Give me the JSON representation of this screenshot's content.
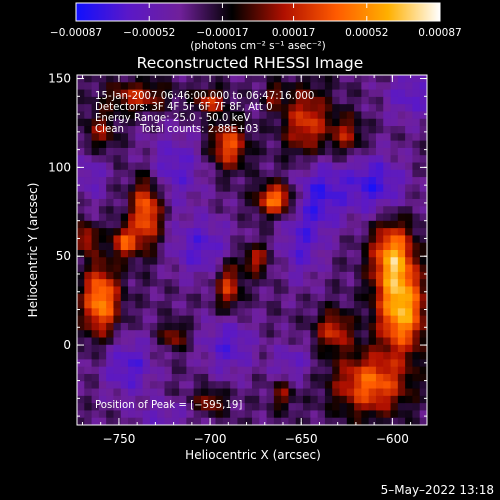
{
  "chart_data": {
    "type": "heatmap",
    "title": "Reconstructed RHESSI Image",
    "xlabel": "Heliocentric X (arcsec)",
    "ylabel": "Heliocentric Y (arcsec)",
    "xlim": [
      -773,
      -581
    ],
    "ylim": [
      -45,
      152
    ],
    "x_ticks": [
      -750,
      -700,
      -650,
      -600
    ],
    "x_tick_labels": [
      "−750",
      "−700",
      "−650",
      "−600"
    ],
    "y_ticks": [
      0,
      50,
      100,
      150
    ],
    "y_tick_labels": [
      "0",
      "50",
      "100",
      "150"
    ],
    "colorbar": {
      "min": -0.00087,
      "max": 0.00087,
      "ticks": [
        -0.00087,
        -0.00052,
        -0.00017,
        0.00017,
        0.00052,
        0.00087
      ],
      "tick_labels": [
        "−0.00087",
        "−0.00052",
        "−0.00017",
        "0.00017",
        "0.00052",
        "0.00087"
      ],
      "stops": [
        "#1010ff",
        "#5a18c8",
        "#70209a",
        "#000000",
        "#b01000",
        "#ff5a00",
        "#ffb000",
        "#ffffff"
      ],
      "unit_label": "(photons cm⁻² s⁻¹ asec⁻²)"
    },
    "info_lines": [
      "15-Jan-2007 06:46:00.000 to 06:47:16.000",
      "Detectors: 3F 4F 5F 6F 7F 8F, Att 0",
      "Energy Range: 25.0 - 50.0 keV",
      "Clean     Total counts: 2.88E+03"
    ],
    "peak_label": "Position of Peak = [−595,19]",
    "peak": [
      -595,
      19
    ],
    "sources": [
      {
        "x": -595,
        "y": 19,
        "sx": 9,
        "sy": 16,
        "a": 1.0
      },
      {
        "x": -600,
        "y": 50,
        "sx": 8,
        "sy": 14,
        "a": 0.9
      },
      {
        "x": -612,
        "y": -22,
        "sx": 14,
        "sy": 12,
        "a": 0.75
      },
      {
        "x": -632,
        "y": 8,
        "sx": 7,
        "sy": 8,
        "a": 0.55
      },
      {
        "x": -664,
        "y": 82,
        "sx": 7,
        "sy": 6,
        "a": 0.85
      },
      {
        "x": -690,
        "y": 112,
        "sx": 7,
        "sy": 9,
        "a": 0.7
      },
      {
        "x": -700,
        "y": 137,
        "sx": 6,
        "sy": 5,
        "a": 0.55
      },
      {
        "x": -735,
        "y": 75,
        "sx": 6,
        "sy": 14,
        "a": 0.8
      },
      {
        "x": -747,
        "y": 58,
        "sx": 5,
        "sy": 6,
        "a": 0.65
      },
      {
        "x": -760,
        "y": 25,
        "sx": 7,
        "sy": 14,
        "a": 0.9
      },
      {
        "x": -768,
        "y": 60,
        "sx": 4,
        "sy": 6,
        "a": 0.55
      },
      {
        "x": -690,
        "y": 33,
        "sx": 5,
        "sy": 10,
        "a": 0.6
      },
      {
        "x": -675,
        "y": 48,
        "sx": 5,
        "sy": 6,
        "a": 0.5
      },
      {
        "x": -720,
        "y": 5,
        "sx": 5,
        "sy": 5,
        "a": 0.45
      },
      {
        "x": -700,
        "y": -32,
        "sx": 6,
        "sy": 5,
        "a": 0.45
      },
      {
        "x": -660,
        "y": -28,
        "sx": 4,
        "sy": 6,
        "a": 0.4
      },
      {
        "x": -647,
        "y": 125,
        "sx": 9,
        "sy": 14,
        "a": 0.6
      },
      {
        "x": -625,
        "y": 118,
        "sx": 6,
        "sy": 8,
        "a": 0.45
      },
      {
        "x": -740,
        "y": 140,
        "sx": 12,
        "sy": 6,
        "a": 0.5
      },
      {
        "x": -760,
        "y": 120,
        "sx": 6,
        "sy": 8,
        "a": 0.4
      },
      {
        "x": -665,
        "y": 140,
        "sx": 4,
        "sy": 5,
        "a": 0.35
      }
    ],
    "negative_regions": [
      {
        "x": -640,
        "y": 85,
        "sx": 10,
        "sy": 15,
        "a": 0.95
      },
      {
        "x": -610,
        "y": 90,
        "sx": 12,
        "sy": 12,
        "a": 1.0
      },
      {
        "x": -720,
        "y": 100,
        "sx": 12,
        "sy": 14,
        "a": 0.75
      },
      {
        "x": -705,
        "y": 55,
        "sx": 12,
        "sy": 12,
        "a": 0.8
      },
      {
        "x": -745,
        "y": -12,
        "sx": 10,
        "sy": 12,
        "a": 0.85
      },
      {
        "x": -690,
        "y": 0,
        "sx": 10,
        "sy": 12,
        "a": 0.8
      },
      {
        "x": -650,
        "y": 55,
        "sx": 8,
        "sy": 14,
        "a": 0.7
      },
      {
        "x": -765,
        "y": 95,
        "sx": 6,
        "sy": 10,
        "a": 0.6
      },
      {
        "x": -655,
        "y": -10,
        "sx": 8,
        "sy": 8,
        "a": 0.6
      },
      {
        "x": -725,
        "y": -40,
        "sx": 12,
        "sy": 6,
        "a": 0.5
      },
      {
        "x": -590,
        "y": 140,
        "sx": 10,
        "sy": 10,
        "a": 0.7
      }
    ],
    "grid": false
  },
  "timestamp": "5–May–2022 13:18"
}
